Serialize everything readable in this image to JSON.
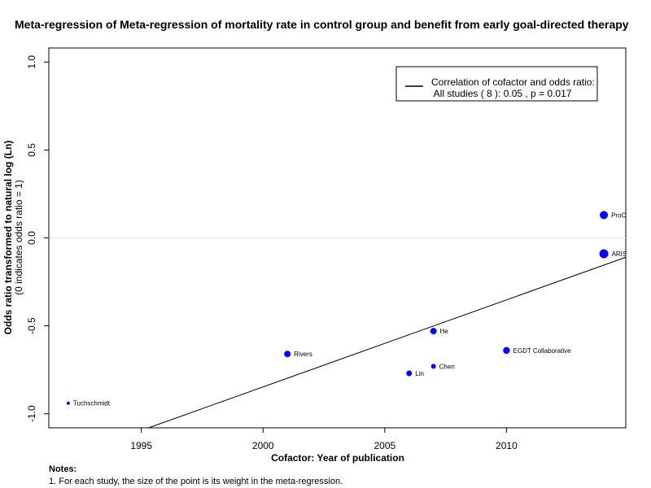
{
  "chart_data": {
    "type": "scatter",
    "title": "Meta-regression of  Meta-regression of mortality rate in control group and benefit from early goal-directed therapy",
    "xlabel": "Cofactor:  Year of publication",
    "ylabel": "Odds ratio transformed to natural log (Ln)",
    "ylabel_sub": "(0 indicates odds ratio = 1)",
    "xlim": [
      1991.2,
      2014.9
    ],
    "ylim": [
      -1.08,
      1.08
    ],
    "x_ticks": [
      1995,
      2000,
      2005,
      2010
    ],
    "y_ticks": [
      -1.0,
      -0.5,
      0.0,
      0.5,
      1.0
    ],
    "x_tick_labels": [
      "1995",
      "2000",
      "2005",
      "2010"
    ],
    "y_tick_labels": [
      "-1.0",
      "-0.5",
      "0.0",
      "0.5",
      "1.0"
    ],
    "reference_line_y": 0,
    "points": [
      {
        "label": "Tuchschmidt",
        "x": 1992,
        "y": -0.94,
        "weight": 1
      },
      {
        "label": "Rivers",
        "x": 2001,
        "y": -0.66,
        "weight": 3
      },
      {
        "label": "Lin",
        "x": 2006,
        "y": -0.77,
        "weight": 2.5
      },
      {
        "label": "He",
        "x": 2007,
        "y": -0.53,
        "weight": 3
      },
      {
        "label": "Chen",
        "x": 2007,
        "y": -0.73,
        "weight": 2
      },
      {
        "label": "EGDT Collaborative",
        "x": 2010,
        "y": -0.64,
        "weight": 3.2
      },
      {
        "label": "ProCESS",
        "x": 2014,
        "y": 0.13,
        "weight": 4
      },
      {
        "label": "ARISE",
        "x": 2014,
        "y": -0.09,
        "weight": 4.5
      }
    ],
    "regression_line": {
      "x": [
        1995.3,
        2014.9
      ],
      "y": [
        -1.08,
        -0.11
      ]
    },
    "legend": {
      "position": "top-right",
      "line1": "Correlation of cofactor and odds ratio:",
      "line2": " All studies ( 8 ): 0.05 , p = 0.017"
    },
    "grid": false
  },
  "notes": {
    "title": "Notes:",
    "text": "1. For each study, the size of the point is its weight in the meta-regression."
  },
  "colors": {
    "points": "#0000ff",
    "line": "#000000",
    "reference": "#e6e6e6"
  }
}
